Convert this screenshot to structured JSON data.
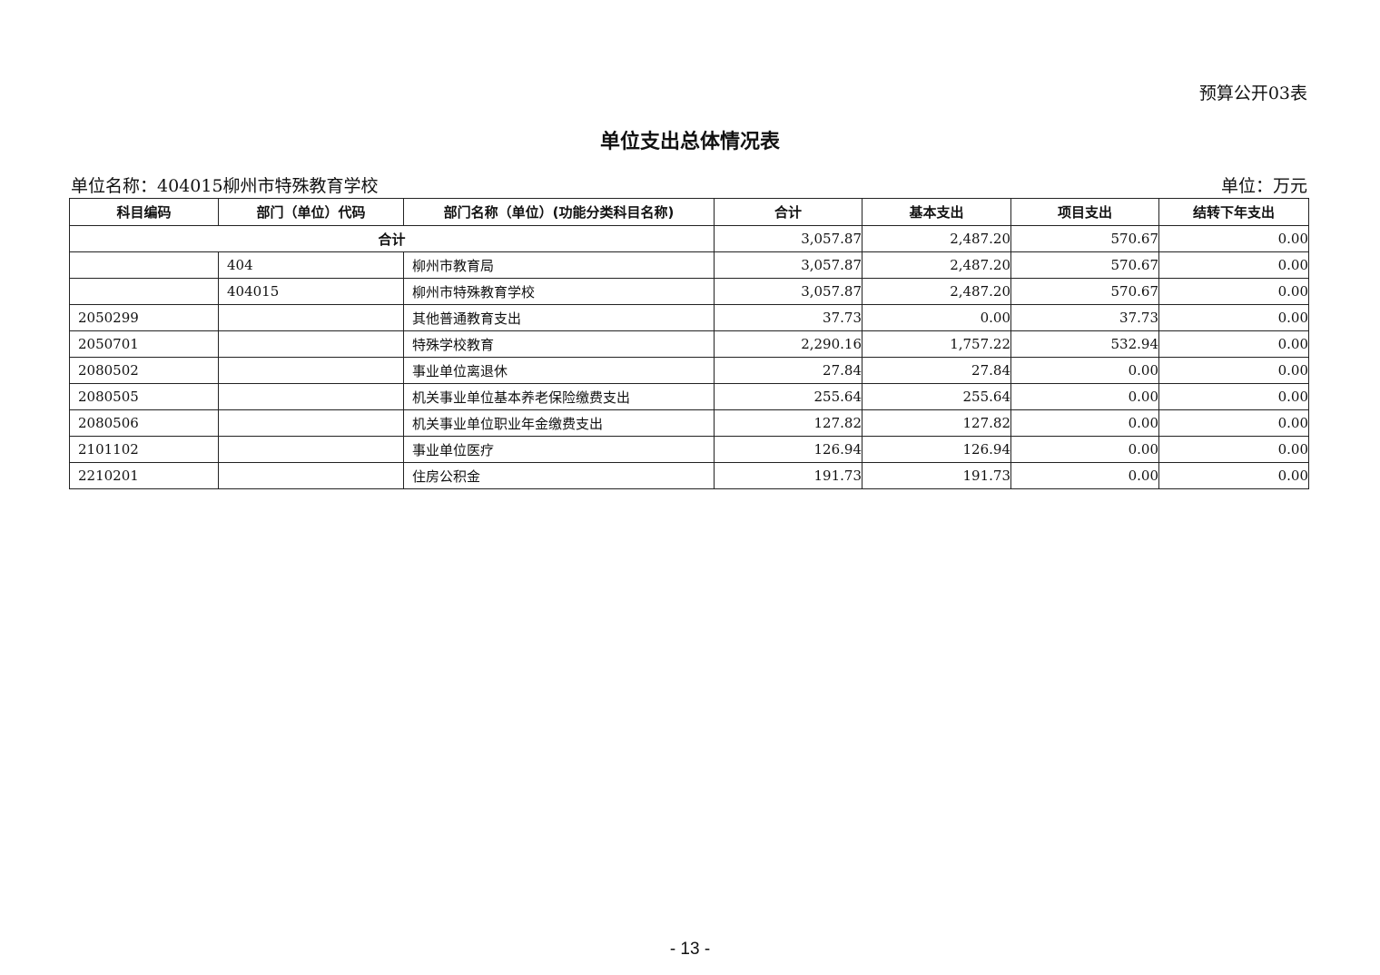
{
  "form_no": "预算公开03表",
  "title": "单位支出总体情况表",
  "unit_name": "单位名称：404015柳州市特殊教育学校",
  "unit": "单位：万元",
  "table": {
    "headers": [
      "科目编码",
      "部门（单位）代码",
      "部门名称（单位）(功能分类科目名称)",
      "合计",
      "基本支出",
      "项目支出",
      "结转下年支出"
    ],
    "total_row": {
      "label": "合计",
      "values": [
        "3,057.87",
        "2,487.20",
        "570.67",
        "0.00"
      ]
    },
    "rows": [
      [
        "",
        "404",
        "柳州市教育局",
        "3,057.87",
        "2,487.20",
        "570.67",
        "0.00"
      ],
      [
        "",
        "404015",
        "柳州市特殊教育学校",
        "3,057.87",
        "2,487.20",
        "570.67",
        "0.00"
      ],
      [
        "2050299",
        "",
        "其他普通教育支出",
        "37.73",
        "0.00",
        "37.73",
        "0.00"
      ],
      [
        "2050701",
        "",
        "特殊学校教育",
        "2,290.16",
        "1,757.22",
        "532.94",
        "0.00"
      ],
      [
        "2080502",
        "",
        "事业单位离退休",
        "27.84",
        "27.84",
        "0.00",
        "0.00"
      ],
      [
        "2080505",
        "",
        "机关事业单位基本养老保险缴费支出",
        "255.64",
        "255.64",
        "0.00",
        "0.00"
      ],
      [
        "2080506",
        "",
        "机关事业单位职业年金缴费支出",
        "127.82",
        "127.82",
        "0.00",
        "0.00"
      ],
      [
        "2101102",
        "",
        "事业单位医疗",
        "126.94",
        "126.94",
        "0.00",
        "0.00"
      ],
      [
        "2210201",
        "",
        "住房公积金",
        "191.73",
        "191.73",
        "0.00",
        "0.00"
      ]
    ]
  },
  "page_number": "- 13 -"
}
